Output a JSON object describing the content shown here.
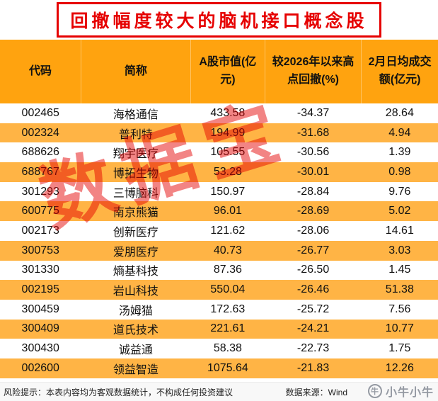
{
  "chart_data": {
    "type": "table",
    "title": "回撤幅度较大的脑机接口概念股",
    "columns": [
      "代码",
      "简称",
      "A股市值(亿元)",
      "较2026年以来高点回撤(%)",
      "2月日均成交额(亿元)"
    ],
    "rows": [
      [
        "002465",
        "海格通信",
        "433.58",
        "-34.37",
        "28.64"
      ],
      [
        "002324",
        "普利特",
        "194.99",
        "-31.68",
        "4.94"
      ],
      [
        "688626",
        "翔宇医疗",
        "105.55",
        "-30.56",
        "1.39"
      ],
      [
        "688767",
        "博拓生物",
        "53.28",
        "-30.01",
        "0.98"
      ],
      [
        "301293",
        "三博脑科",
        "150.97",
        "-28.84",
        "9.76"
      ],
      [
        "600775",
        "南京熊猫",
        "96.01",
        "-28.69",
        "5.02"
      ],
      [
        "002173",
        "创新医疗",
        "121.62",
        "-28.06",
        "14.61"
      ],
      [
        "300753",
        "爱朋医疗",
        "40.73",
        "-26.77",
        "3.03"
      ],
      [
        "301330",
        "熵基科技",
        "87.36",
        "-26.50",
        "1.45"
      ],
      [
        "002195",
        "岩山科技",
        "550.04",
        "-26.46",
        "51.38"
      ],
      [
        "300459",
        "汤姆猫",
        "172.63",
        "-25.72",
        "7.56"
      ],
      [
        "300409",
        "道氏技术",
        "221.61",
        "-24.21",
        "10.77"
      ],
      [
        "300430",
        "诚益通",
        "58.38",
        "-22.73",
        "1.75"
      ],
      [
        "002600",
        "领益智造",
        "1075.64",
        "-21.83",
        "12.26"
      ]
    ]
  },
  "watermark": "数据宝",
  "footer": {
    "risk_note": "风险提示：本表内容均为客观数据统计，不构成任何投资建议",
    "source": "数据来源：Wind",
    "watermark_label": "小牛小牛",
    "watermark_logo_glyph": "牛"
  },
  "colors": {
    "accent_red": "#E60000",
    "header_bg": "#FFA30F",
    "stripe_bg": "#FFB445"
  }
}
